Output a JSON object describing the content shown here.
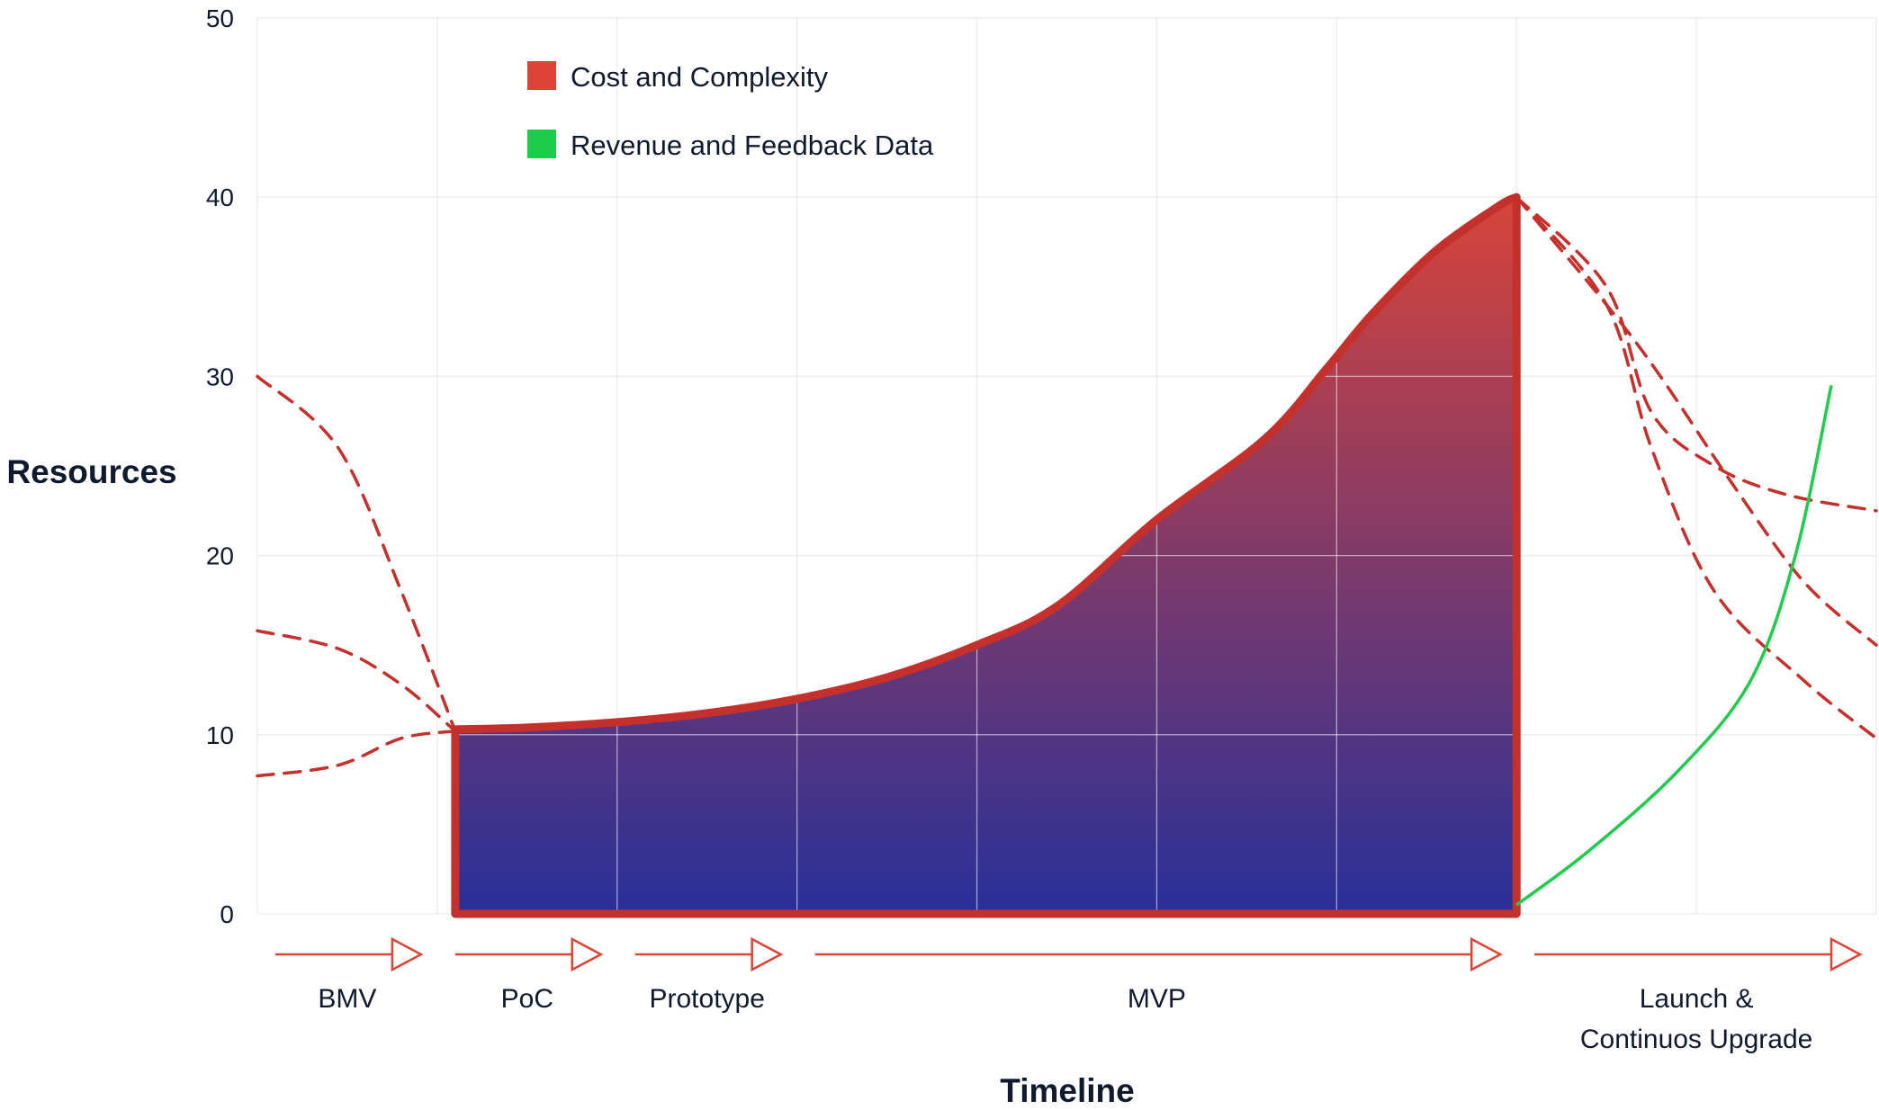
{
  "colors": {
    "cost": "#dd4437",
    "cost_stroke": "#c4302b",
    "fill_top": "#d8443a",
    "fill_bottom": "#283099",
    "revenue": "#1ecb4b",
    "text": "#0f1a2e",
    "grid": "#ebebeb"
  },
  "chart_data": {
    "type": "area",
    "xlabel": "Timeline",
    "ylabel": "Resources",
    "ylim": [
      0,
      50
    ],
    "xlim": [
      0,
      9
    ],
    "yticks": [
      0,
      10,
      20,
      30,
      40,
      50
    ],
    "grid": true,
    "legend_position": "top-left",
    "legend": [
      {
        "label": "Cost and Complexity",
        "color": "#dd4437"
      },
      {
        "label": "Revenue and Feedback Data",
        "color": "#1ecb4b"
      }
    ],
    "phases": [
      {
        "label": "BMV",
        "start": 0.0,
        "end": 1.0
      },
      {
        "label": "PoC",
        "start": 1.0,
        "end": 2.0
      },
      {
        "label": "Prototype",
        "start": 2.0,
        "end": 3.0
      },
      {
        "label": "MVP",
        "start": 3.0,
        "end": 7.0
      },
      {
        "label": "Launch &",
        "label2": "Continuos Upgrade",
        "start": 7.0,
        "end": 9.0
      }
    ],
    "series": [
      {
        "name": "Cost and Complexity",
        "style": "filled-area",
        "x": [
          1.1,
          1.5,
          2.0,
          2.5,
          3.0,
          3.5,
          4.0,
          4.45,
          5.0,
          5.6,
          5.95,
          6.2,
          6.55,
          6.9,
          7.0
        ],
        "y": [
          10.3,
          10.4,
          10.7,
          11.2,
          12.0,
          13.2,
          15.0,
          17.2,
          22.0,
          26.5,
          30.5,
          33.5,
          37.0,
          39.5,
          40.0
        ]
      },
      {
        "name": "Revenue and Feedback Data",
        "style": "solid-line",
        "x": [
          7.0,
          7.4,
          7.9,
          8.3,
          8.55,
          8.75
        ],
        "y": [
          0.5,
          3.5,
          8.0,
          13.0,
          20.0,
          29.5
        ]
      }
    ],
    "projections": [
      {
        "x": [
          0.0,
          0.45,
          0.8,
          1.1
        ],
        "y": [
          30.0,
          26.0,
          18.0,
          10.2
        ]
      },
      {
        "x": [
          0.0,
          0.45,
          0.8,
          1.1
        ],
        "y": [
          15.8,
          14.8,
          12.8,
          10.2
        ]
      },
      {
        "x": [
          0.0,
          0.45,
          0.8,
          1.1
        ],
        "y": [
          7.7,
          8.3,
          9.8,
          10.2
        ]
      },
      {
        "x": [
          7.0,
          7.5,
          7.75,
          8.1,
          8.5,
          9.0
        ],
        "y": [
          40.0,
          35.0,
          28.0,
          25.0,
          23.4,
          22.5
        ]
      },
      {
        "x": [
          7.0,
          7.5,
          7.8,
          8.2,
          8.6,
          9.0
        ],
        "y": [
          40.0,
          34.0,
          30.0,
          24.0,
          18.5,
          15.0
        ]
      },
      {
        "x": [
          7.0,
          7.5,
          7.75,
          8.1,
          8.6,
          9.0
        ],
        "y": [
          40.0,
          34.0,
          26.0,
          18.0,
          13.0,
          9.8
        ]
      }
    ]
  }
}
